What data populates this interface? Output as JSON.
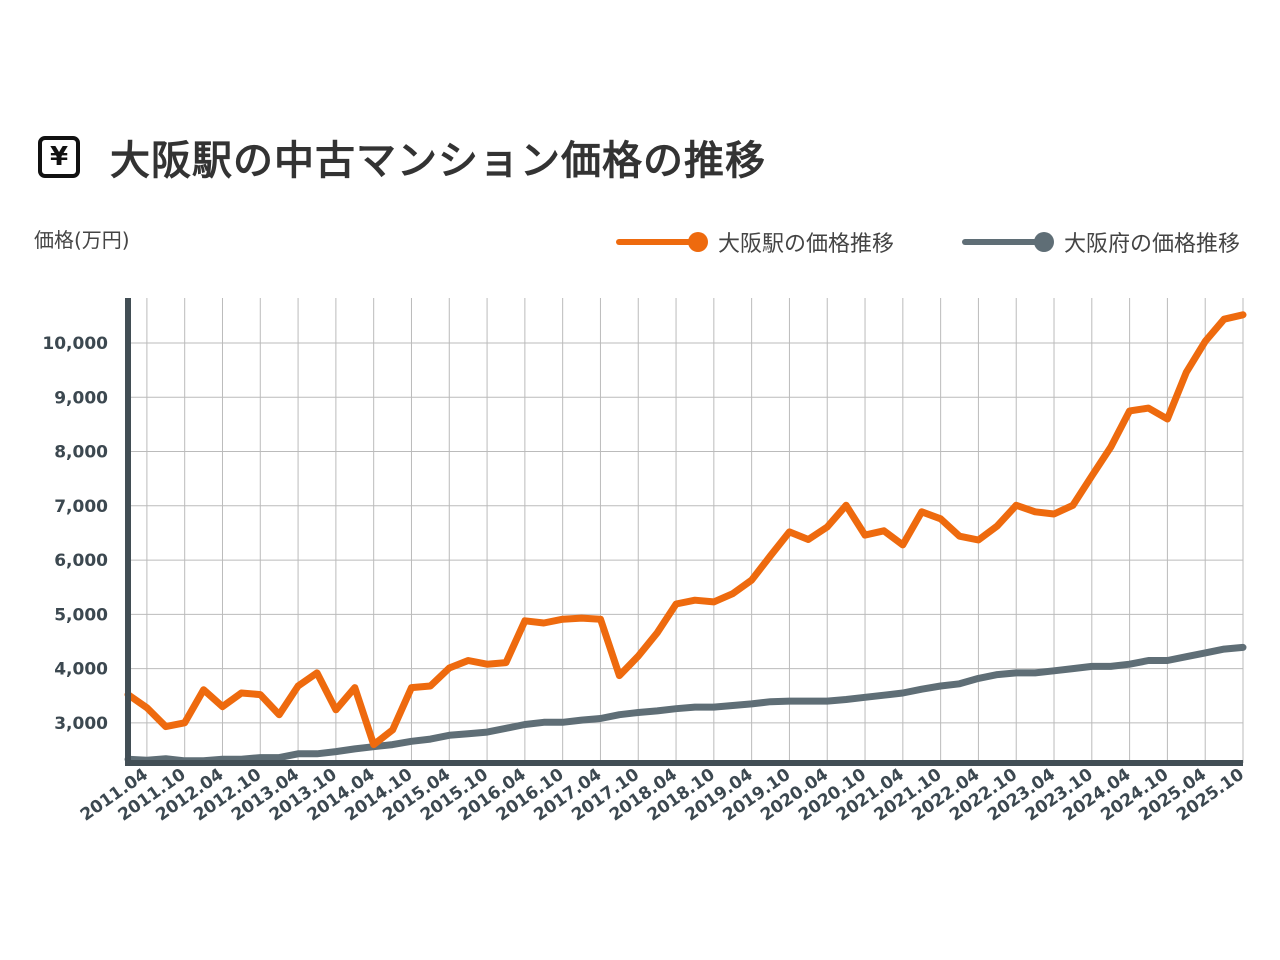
{
  "title": "大阪駅の中古マンション価格の推移",
  "title_icon": "yen-icon",
  "colors": {
    "station": "#EE6A0E",
    "prefecture": "#5F6E76",
    "axis": "#424E55",
    "grid": "#BBBBBB"
  },
  "chart_data": {
    "type": "line",
    "title": "大阪駅の中古マンション価格の推移",
    "ylabel": "価格(万円)",
    "xlabel": "",
    "ylim": [
      2260,
      10830
    ],
    "yticks": [
      3000,
      4000,
      5000,
      6000,
      7000,
      8000,
      9000,
      10000
    ],
    "ytick_labels": [
      "3,000",
      "4,000",
      "5,000",
      "6,000",
      "7,000",
      "8,000",
      "9,000",
      "10,000"
    ],
    "grid": true,
    "legend_position": "top-right",
    "x_start": "2011.01",
    "x_step": "quarter",
    "xtick_labels": [
      "2011.04",
      "2011.10",
      "2012.04",
      "2012.10",
      "2013.04",
      "2013.10",
      "2014.04",
      "2014.10",
      "2015.04",
      "2015.10",
      "2016.04",
      "2016.10",
      "2017.04",
      "2017.10",
      "2018.04",
      "2018.10",
      "2019.04",
      "2019.10",
      "2020.04",
      "2020.10",
      "2021.04",
      "2021.10",
      "2022.04",
      "2022.10",
      "2023.04",
      "2023.10",
      "2024.04",
      "2024.10",
      "2025.04",
      "2025.10"
    ],
    "series": [
      {
        "name": "大阪駅の価格推移",
        "color": "#EE6A0E",
        "values": [
          3520,
          3280,
          2930,
          3000,
          3610,
          3300,
          3550,
          3520,
          3150,
          3680,
          3920,
          3240,
          3650,
          2600,
          2870,
          3650,
          3680,
          4010,
          4150,
          4080,
          4110,
          4880,
          4840,
          4910,
          4930,
          4910,
          3870,
          4230,
          4660,
          5190,
          5260,
          5230,
          5380,
          5630,
          6080,
          6520,
          6380,
          6610,
          7010,
          6460,
          6540,
          6280,
          6890,
          6760,
          6440,
          6370,
          6630,
          7010,
          6890,
          6850,
          7010,
          7550,
          8080,
          8750,
          8800,
          8600,
          9460,
          10030,
          10440,
          10520
        ]
      },
      {
        "name": "大阪府の価格推移",
        "color": "#5F6E76",
        "values": [
          2330,
          2310,
          2340,
          2300,
          2300,
          2330,
          2330,
          2360,
          2360,
          2430,
          2430,
          2470,
          2520,
          2560,
          2600,
          2660,
          2700,
          2770,
          2800,
          2830,
          2900,
          2970,
          3010,
          3010,
          3050,
          3080,
          3150,
          3190,
          3220,
          3260,
          3290,
          3290,
          3320,
          3350,
          3390,
          3400,
          3400,
          3400,
          3430,
          3470,
          3510,
          3550,
          3620,
          3680,
          3720,
          3820,
          3890,
          3920,
          3920,
          3960,
          4000,
          4040,
          4040,
          4080,
          4150,
          4150,
          4220,
          4290,
          4360,
          4390
        ]
      }
    ]
  }
}
